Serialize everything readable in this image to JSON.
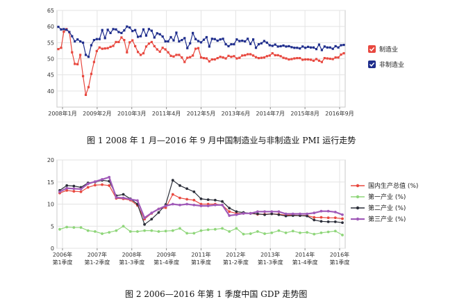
{
  "figure1": {
    "caption": "图 1   2008 年 1 月—2016 年 9 月中国制造业与非制造业 PMI 运行走势"
  },
  "figure2": {
    "caption": "图 2   2006—2016 年第 1 季度中国 GDP 走势图"
  },
  "chart_data": [
    {
      "type": "line",
      "title": "",
      "ylim": [
        35,
        65
      ],
      "y_ticks": [
        "65",
        "60",
        "55",
        "50",
        "45",
        "40"
      ],
      "x_tick_labels": [
        "2008年1月",
        "2009年2月",
        "2010年3月",
        "2011年4月",
        "2012年5月",
        "2013年6月",
        "2014年7月",
        "2015年8月",
        "2016年9月"
      ],
      "grid": true,
      "legend_position": "right",
      "colors": {
        "制造业": "#e8483f",
        "非制造业": "#1e2d8c"
      },
      "series": [
        {
          "name": "制造业",
          "values": [
            53.0,
            53.4,
            58.4,
            59.2,
            58.3,
            52.0,
            48.4,
            48.3,
            51.2,
            44.6,
            38.8,
            41.2,
            45.3,
            49.0,
            52.4,
            53.5,
            53.1,
            53.2,
            53.3,
            53.7,
            54.0,
            55.2,
            55.2,
            56.6,
            55.8,
            52.0,
            55.1,
            55.7,
            53.9,
            52.1,
            51.2,
            51.7,
            53.8,
            54.7,
            55.2,
            53.9,
            52.9,
            52.2,
            53.4,
            52.9,
            52.0,
            50.9,
            50.7,
            51.2,
            51.2,
            50.4,
            49.0,
            50.3,
            50.5,
            51.0,
            53.1,
            53.3,
            50.4,
            50.2,
            50.1,
            49.2,
            49.8,
            49.8,
            50.2,
            50.6,
            50.4,
            50.1,
            50.9,
            50.6,
            50.8,
            50.1,
            50.3,
            51.0,
            51.1,
            51.4,
            51.4,
            51.0,
            50.5,
            50.2,
            50.3,
            50.4,
            50.8,
            51.0,
            51.7,
            51.1,
            51.1,
            50.8,
            50.3,
            50.1,
            49.8,
            49.9,
            50.1,
            50.2,
            50.2,
            49.7,
            49.8,
            49.8,
            49.7,
            49.4,
            49.9,
            49.4,
            49.0,
            50.2,
            50.1,
            50.0,
            49.9,
            50.4,
            50.4,
            51.3,
            51.7
          ]
        },
        {
          "name": "非制造业",
          "values": [
            59.9,
            59.1,
            59.2,
            59.0,
            58.3,
            57.0,
            55.4,
            56.0,
            55.4,
            55.0,
            51.2,
            50.6,
            54.2,
            55.8,
            56.1,
            56.1,
            58.9,
            56.4,
            59.0,
            58.0,
            59.2,
            59.1,
            58.3,
            58.0,
            58.8,
            60.0,
            59.7,
            58.6,
            58.9,
            56.8,
            57.0,
            59.1,
            57.2,
            59.2,
            58.7,
            56.6,
            57.9,
            57.6,
            56.9,
            55.4,
            55.4,
            56.7,
            55.7,
            58.1,
            55.4,
            55.8,
            56.4,
            53.3,
            54.8,
            58.0,
            56.1,
            55.5,
            55.1,
            55.9,
            56.7,
            53.8,
            56.2,
            56.1,
            55.6,
            56.0,
            56.2,
            54.5,
            53.9,
            54.5,
            54.5,
            56.0,
            55.5,
            55.6,
            55.4,
            56.2,
            54.6,
            56.0,
            53.4,
            54.5,
            54.8,
            55.5,
            55.0,
            54.2,
            54.0,
            54.4,
            53.8,
            53.9,
            54.1,
            53.8,
            53.9,
            53.6,
            53.4,
            53.4,
            53.2,
            53.8,
            53.4,
            53.7,
            53.5,
            53.5,
            53.0,
            54.4,
            52.7,
            53.8,
            53.5,
            53.5,
            53.1,
            53.9,
            53.5,
            54.2,
            54.3
          ]
        }
      ]
    },
    {
      "type": "line",
      "title": "",
      "ylim": [
        0,
        20
      ],
      "y_ticks": [
        "20",
        "15",
        "10",
        "5",
        "0"
      ],
      "x_tick_labels": [
        [
          "2006年",
          "第1季度"
        ],
        [
          "2007年",
          "第1-2季度"
        ],
        [
          "2008年",
          "第1-3季度"
        ],
        [
          "2009年",
          "第1-4季度"
        ],
        [
          "2011年",
          "第1季度"
        ],
        [
          "2012年",
          "第1-2季度"
        ],
        [
          "2013年",
          "第1-3季度"
        ],
        [
          "2014年",
          "第1-4季度"
        ],
        [
          "2016年",
          "第1季度"
        ]
      ],
      "grid": true,
      "legend_position": "right",
      "colors": {
        "国内生产总值 (%)": "#e8483f",
        "第一产业 (%)": "#8fd67a",
        "第二产业 (%)": "#2a2d38",
        "第三产业 (%)": "#a05ab8"
      },
      "series": [
        {
          "name": "国内生产总值 (%)",
          "values": [
            12.5,
            13.1,
            12.9,
            12.8,
            13.8,
            14.3,
            14.4,
            14.2,
            11.3,
            11.2,
            10.9,
            9.7,
            6.6,
            7.9,
            8.9,
            9.2,
            12.2,
            11.4,
            11.1,
            10.9,
            10.0,
            10.0,
            10.0,
            9.8,
            8.3,
            7.9,
            7.9,
            7.9,
            7.7,
            7.7,
            7.8,
            7.7,
            7.5,
            7.5,
            7.4,
            7.4,
            7.0,
            7.0,
            6.9,
            6.9,
            6.7
          ]
        },
        {
          "name": "第一产业 (%)",
          "values": [
            4.3,
            4.8,
            4.7,
            4.7,
            4.0,
            3.8,
            3.3,
            3.6,
            4.0,
            5.0,
            3.8,
            3.8,
            4.0,
            4.0,
            3.8,
            3.9,
            4.0,
            4.5,
            3.4,
            3.4,
            4.0,
            4.2,
            4.3,
            4.5,
            3.8,
            4.5,
            3.2,
            3.3,
            3.8,
            3.3,
            3.5,
            4.0,
            3.5,
            3.9,
            3.5,
            3.6,
            3.2,
            3.5,
            3.7,
            3.9,
            3.0
          ]
        },
        {
          "name": "第二产业 (%)",
          "values": [
            13.1,
            14.2,
            14.1,
            13.8,
            14.8,
            15.0,
            15.4,
            15.2,
            11.9,
            12.2,
            11.2,
            10.0,
            5.4,
            6.6,
            8.1,
            9.9,
            15.4,
            14.2,
            13.5,
            12.8,
            11.2,
            11.0,
            10.9,
            10.6,
            9.1,
            8.3,
            8.1,
            7.9,
            7.8,
            7.6,
            7.8,
            7.6,
            7.3,
            7.4,
            7.4,
            7.3,
            6.4,
            6.1,
            6.0,
            6.0,
            5.8
          ]
        },
        {
          "name": "第三产业 (%)",
          "values": [
            12.8,
            13.6,
            13.5,
            13.4,
            14.6,
            15.1,
            15.6,
            16.1,
            11.5,
            11.4,
            11.1,
            10.8,
            6.9,
            8.0,
            8.9,
            9.6,
            10.0,
            9.8,
            10.0,
            9.8,
            9.6,
            9.6,
            9.8,
            9.8,
            7.4,
            7.6,
            7.9,
            7.9,
            8.3,
            8.3,
            8.3,
            8.3,
            7.8,
            7.8,
            7.8,
            7.8,
            8.0,
            8.4,
            8.4,
            8.2,
            7.6
          ]
        }
      ]
    }
  ]
}
